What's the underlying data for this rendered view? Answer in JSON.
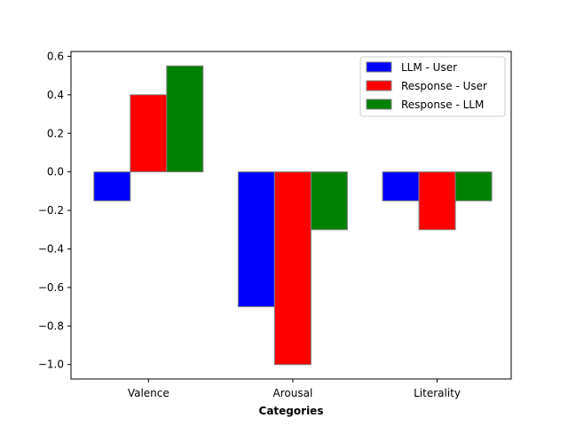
{
  "chart_data": {
    "type": "bar",
    "title": "",
    "xlabel": "Categories",
    "ylabel": "",
    "categories": [
      "Valence",
      "Arousal",
      "Literality"
    ],
    "series": [
      {
        "name": "LLM - User",
        "color": "#0000ff",
        "values": [
          -0.15,
          -0.7,
          -0.15
        ]
      },
      {
        "name": "Response - User",
        "color": "#ff0000",
        "values": [
          0.4,
          -1.0,
          -0.3
        ]
      },
      {
        "name": "Response - LLM",
        "color": "#008000",
        "values": [
          0.55,
          -0.3,
          -0.15
        ]
      }
    ],
    "ylim": [
      -1.075,
      0.625
    ],
    "yticks": [
      0.6,
      0.4,
      0.2,
      0.0,
      -0.2,
      -0.4,
      -0.6,
      -0.8,
      -1.0
    ],
    "ytick_labels": [
      "0.6",
      "0.4",
      "0.2",
      "0.0",
      "−0.2",
      "−0.4",
      "−0.6",
      "−0.8",
      "−1.0"
    ],
    "grid": false,
    "legend_position": "top-right"
  }
}
